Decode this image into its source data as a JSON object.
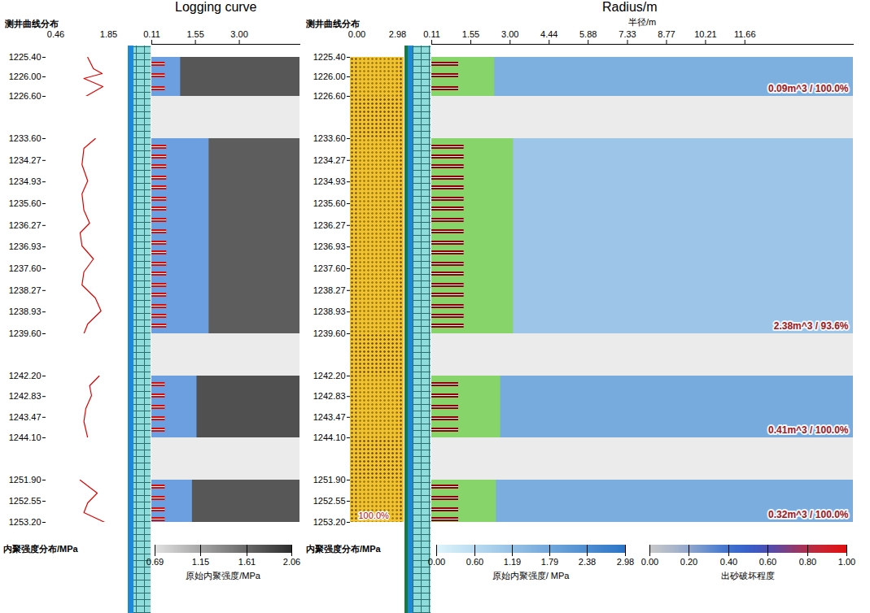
{
  "chart_data": {
    "type": "well_section",
    "annotations": [
      "Logging curve",
      "Radius/m"
    ],
    "intervals": [
      {
        "depth": [
          1225.4,
          1226.6
        ],
        "ticks": [
          {
            "value": 1225.4,
            "label": "1225.40"
          },
          {
            "value": 1226,
            "label": "1226.00"
          },
          {
            "value": 1226.6,
            "label": "1226.60"
          }
        ],
        "perforations": [
          1225.6,
          1225.95,
          1226.35
        ],
        "curve": [
          [
            1225.4,
            1.3
          ],
          [
            1225.75,
            1.45
          ],
          [
            1225.9,
            1.68
          ],
          [
            1226.05,
            1.2
          ],
          [
            1226.3,
            1.7
          ],
          [
            1226.6,
            1.25
          ]
        ],
        "left": {
          "cohesion": 1.75,
          "damage_radius": 1.06,
          "tunnel_length": 0.55
        },
        "right": {
          "cohesion": 1.6,
          "damage_radius": 2.43,
          "tunnel_length": 1.1,
          "label": "0.09m^3 / 100.0%"
        }
      },
      {
        "depth": [
          1233.6,
          1239.6
        ],
        "ticks": [
          {
            "value": 1233.6,
            "label": "1233.60"
          },
          1234.27,
          1234.93,
          {
            "value": 1235.6,
            "label": "1235.60"
          },
          1236.27,
          1236.93,
          {
            "value": 1237.6,
            "label": "1237.60"
          },
          1238.27,
          1238.93,
          {
            "value": 1239.6,
            "label": "1239.60"
          }
        ],
        "perforations": [
          1233.85,
          1234.15,
          1234.45,
          1234.8,
          1235.1,
          1235.45,
          1235.75,
          1236.1,
          1236.45,
          1236.8,
          1237.1,
          1237.45,
          1237.75,
          1238.1,
          1238.4,
          1238.75,
          1239.05,
          1239.35
        ],
        "curve": [
          [
            1233.6,
            1.5
          ],
          [
            1233.9,
            1.2
          ],
          [
            1234.4,
            1.15
          ],
          [
            1234.9,
            1.3
          ],
          [
            1235.3,
            1.15
          ],
          [
            1235.8,
            1.2
          ],
          [
            1236.2,
            1.35
          ],
          [
            1236.5,
            1.1
          ],
          [
            1236.9,
            1.15
          ],
          [
            1237.3,
            1.45
          ],
          [
            1237.7,
            1.2
          ],
          [
            1238.1,
            1.15
          ],
          [
            1238.5,
            1.5
          ],
          [
            1238.9,
            1.65
          ],
          [
            1239.3,
            1.3
          ],
          [
            1239.6,
            1.2
          ]
        ],
        "left": {
          "cohesion": 1.7,
          "damage_radius": 2.0,
          "tunnel_length": 0.6
        },
        "right": {
          "cohesion": 1.1,
          "damage_radius": 3.12,
          "tunnel_length": 1.3,
          "label": "2.38m^3 / 93.6%"
        }
      },
      {
        "depth": [
          1242.2,
          1244.1
        ],
        "ticks": [
          {
            "value": 1242.2,
            "label": "1242.20"
          },
          1242.83,
          1243.47,
          {
            "value": 1244.1,
            "label": "1244.10"
          }
        ],
        "perforations": [
          1242.45,
          1242.8,
          1243.15,
          1243.5,
          1243.85
        ],
        "curve": [
          [
            1242.2,
            1.6
          ],
          [
            1242.5,
            1.35
          ],
          [
            1242.8,
            1.4
          ],
          [
            1243.2,
            1.25
          ],
          [
            1243.6,
            1.2
          ],
          [
            1244.1,
            1.3
          ]
        ],
        "left": {
          "cohesion": 1.8,
          "damage_radius": 1.6,
          "tunnel_length": 0.55
        },
        "right": {
          "cohesion": 1.7,
          "damage_radius": 2.65,
          "tunnel_length": 1.1,
          "label": "0.41m^3 / 100.0%"
        }
      },
      {
        "depth": [
          1251.9,
          1253.2
        ],
        "ticks": [
          {
            "value": 1251.9,
            "label": "1251.90"
          },
          1252.55,
          {
            "value": 1253.2,
            "label": "1253.20"
          }
        ],
        "perforations": [
          1252.1,
          1252.45,
          1252.8,
          1253.1
        ],
        "curve": [
          [
            1251.9,
            1.1
          ],
          [
            1252.3,
            1.55
          ],
          [
            1252.6,
            1.3
          ],
          [
            1252.9,
            1.2
          ],
          [
            1253.2,
            1.75
          ]
        ],
        "left": {
          "cohesion": 1.75,
          "damage_radius": 1.45,
          "tunnel_length": 0.55
        },
        "right": {
          "cohesion": 1.65,
          "damage_radius": 2.49,
          "tunnel_length": 1.1,
          "label": "0.32m^3 / 100.0%"
        }
      }
    ],
    "left_panel": {
      "curve_header": "测井曲线分布",
      "curve_xlim": [
        0.46,
        1.85
      ],
      "curve_xticks": [
        0.46,
        1.85
      ],
      "xlim": [
        0.11,
        5.0
      ],
      "xticks": [
        0.11,
        1.55,
        {
          "value": 3,
          "label": "3.00"
        }
      ],
      "footer": "内聚强度分布/MPa",
      "colorbar": {
        "title": "原始内聚强度/MPa",
        "range": [
          0.69,
          2.06
        ],
        "ticks": [
          0.69,
          1.15,
          1.61,
          2.06
        ]
      }
    },
    "right_panel": {
      "sand_header": "测井曲线分布",
      "sand_xlim": [
        0,
        2.98
      ],
      "sand_xticks": [
        {
          "value": 0,
          "label": "0.00"
        },
        2.98
      ],
      "sand_value": 2.98,
      "sand_label": "100.0%",
      "xlabel": "半径/m",
      "xlim": [
        0.11,
        15.66
      ],
      "xticks": [
        0.11,
        1.55,
        {
          "value": 3,
          "label": "3.00"
        },
        4.44,
        5.88,
        7.33,
        8.77,
        10.21,
        11.66
      ],
      "footer": "内聚强度分布/MPa",
      "colorbars": [
        {
          "title": "原始内聚强度/ MPa",
          "range": [
            0,
            2.98
          ],
          "ticks": [
            {
              "value": 0,
              "label": "0.00"
            },
            {
              "value": 0.6,
              "label": "0.60"
            },
            1.19,
            1.79,
            2.38,
            2.98
          ]
        },
        {
          "title": "出砂破坏程度",
          "range": [
            0,
            1
          ],
          "ticks": [
            {
              "value": 0,
              "label": "0.00"
            },
            {
              "value": 0.2,
              "label": "0.20"
            },
            {
              "value": 0.4,
              "label": "0.40"
            },
            {
              "value": 0.6,
              "label": "0.60"
            },
            {
              "value": 0.8,
              "label": "0.80"
            },
            {
              "value": 1,
              "label": "1.00"
            }
          ]
        }
      ]
    }
  }
}
